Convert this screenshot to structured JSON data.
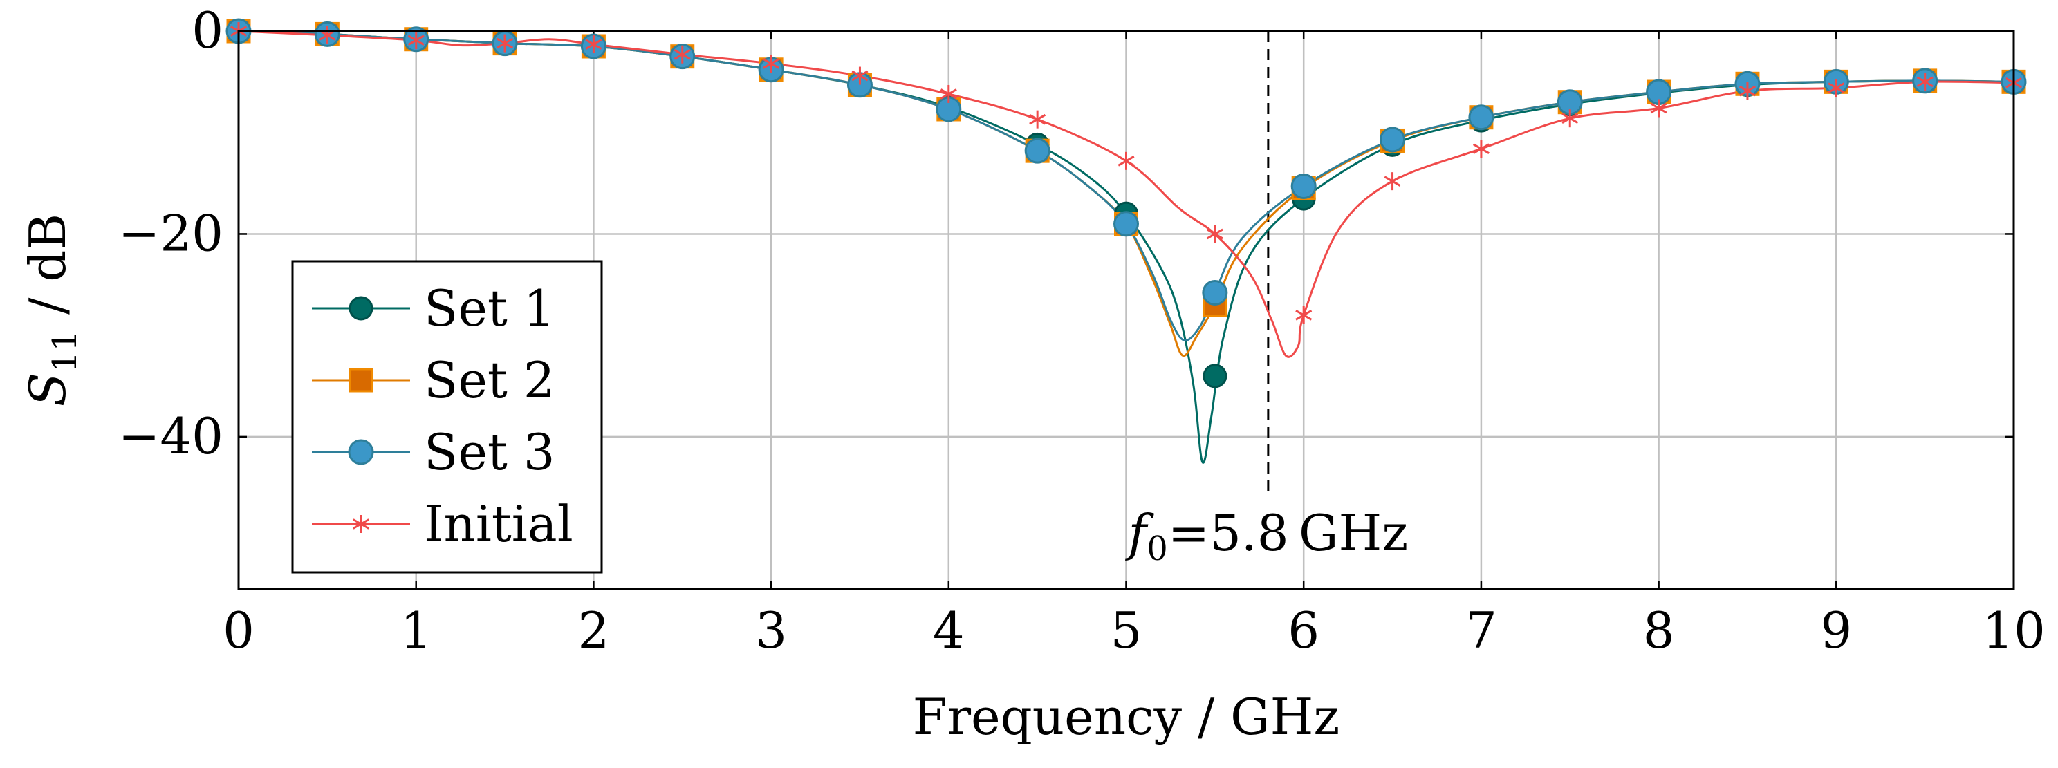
{
  "chart_data": {
    "type": "line",
    "title": "",
    "xlabel": "Frequency / GHz",
    "ylabel_main": "S",
    "ylabel_sub": "11",
    "ylabel_unit": " / dB",
    "xlim": [
      0,
      10
    ],
    "ylim": [
      -55,
      0
    ],
    "xticks": [
      0,
      1,
      2,
      3,
      4,
      5,
      6,
      7,
      8,
      9,
      10
    ],
    "xtick_labels": [
      "0",
      "1",
      "2",
      "3",
      "4",
      "5",
      "6",
      "7",
      "8",
      "9",
      "10"
    ],
    "yticks": [
      0,
      -20,
      -40
    ],
    "ytick_labels": [
      "0",
      "−20",
      "−40"
    ],
    "grid": true,
    "legend_position": "bottom-left",
    "annotation": {
      "x": 5.8,
      "style": "dashed vertical line",
      "label_italic": "f",
      "label_sub": "0",
      "label_rest": "=5.8 GHz"
    },
    "series": [
      {
        "name": "Set 1",
        "color": "#006b63",
        "marker": "circle",
        "markers": {
          "x": [
            0,
            0.5,
            1,
            1.5,
            2,
            2.5,
            3,
            3.5,
            4,
            4.5,
            5,
            5.5,
            6,
            6.5,
            7,
            7.5,
            8,
            8.5,
            9,
            9.5,
            10
          ],
          "y": [
            0,
            -0.3,
            -0.8,
            -1.2,
            -1.5,
            -2.5,
            -3.8,
            -5.3,
            -7.5,
            -11.2,
            -18,
            -34,
            -16.5,
            -11.2,
            -8.8,
            -7.2,
            -6.1,
            -5.3,
            -5.0,
            -4.9,
            -5.0
          ]
        },
        "curve": {
          "x": [
            0,
            0.5,
            1,
            1.5,
            2,
            2.5,
            3,
            3.5,
            4,
            4.5,
            4.8,
            5,
            5.2,
            5.3,
            5.38,
            5.43,
            5.48,
            5.55,
            5.7,
            6,
            6.5,
            7,
            7.5,
            8,
            8.5,
            9,
            9.5,
            10
          ],
          "y": [
            0,
            -0.3,
            -0.8,
            -1.2,
            -1.5,
            -2.5,
            -3.8,
            -5.3,
            -7.5,
            -11.2,
            -14.5,
            -18,
            -23.5,
            -28,
            -35,
            -42.5,
            -38,
            -30,
            -22,
            -16.5,
            -11.2,
            -8.8,
            -7.2,
            -6.1,
            -5.3,
            -5.0,
            -4.9,
            -5.0
          ]
        }
      },
      {
        "name": "Set 2",
        "color": "#e07b00",
        "marker": "square",
        "markers": {
          "x": [
            0,
            0.5,
            1,
            1.5,
            2,
            2.5,
            3,
            3.5,
            4,
            4.5,
            5,
            5.5,
            6,
            6.5,
            7,
            7.5,
            8,
            8.5,
            9,
            9.5,
            10
          ],
          "y": [
            0,
            -0.3,
            -0.8,
            -1.2,
            -1.5,
            -2.5,
            -3.8,
            -5.3,
            -7.7,
            -11.8,
            -19,
            -27,
            -15.5,
            -10.8,
            -8.5,
            -7.0,
            -6.0,
            -5.2,
            -5.0,
            -4.9,
            -5.0
          ]
        },
        "curve": {
          "x": [
            0,
            0.5,
            1,
            1.5,
            2,
            2.5,
            3,
            3.5,
            4,
            4.5,
            4.8,
            5,
            5.15,
            5.25,
            5.32,
            5.4,
            5.5,
            5.65,
            6,
            6.5,
            7,
            7.5,
            8,
            8.5,
            9,
            9.5,
            10
          ],
          "y": [
            0,
            -0.3,
            -0.8,
            -1.2,
            -1.5,
            -2.5,
            -3.8,
            -5.3,
            -7.7,
            -11.8,
            -15.5,
            -19,
            -24.5,
            -29,
            -32,
            -30,
            -27,
            -21.5,
            -15.5,
            -10.8,
            -8.5,
            -7.0,
            -6.0,
            -5.2,
            -5.0,
            -4.9,
            -5.0
          ]
        }
      },
      {
        "name": "Set 3",
        "color": "#2e7f9a",
        "marker": "circle-blue",
        "markers": {
          "x": [
            0,
            0.5,
            1,
            1.5,
            2,
            2.5,
            3,
            3.5,
            4,
            4.5,
            5,
            5.5,
            6,
            6.5,
            7,
            7.5,
            8,
            8.5,
            9,
            9.5,
            10
          ],
          "y": [
            0,
            -0.3,
            -0.8,
            -1.2,
            -1.5,
            -2.5,
            -3.8,
            -5.3,
            -7.7,
            -11.8,
            -19,
            -25.8,
            -15.3,
            -10.7,
            -8.5,
            -7.0,
            -6.0,
            -5.2,
            -5.0,
            -4.9,
            -5.0
          ]
        },
        "curve": {
          "x": [
            0,
            0.5,
            1,
            1.5,
            2,
            2.5,
            3,
            3.5,
            4,
            4.5,
            4.8,
            5,
            5.15,
            5.25,
            5.33,
            5.42,
            5.5,
            5.65,
            6,
            6.5,
            7,
            7.5,
            8,
            8.5,
            9,
            9.5,
            10
          ],
          "y": [
            0,
            -0.3,
            -0.8,
            -1.2,
            -1.5,
            -2.5,
            -3.8,
            -5.3,
            -7.7,
            -11.8,
            -15.5,
            -19,
            -24,
            -28.5,
            -30.5,
            -29,
            -25.8,
            -20.5,
            -15.3,
            -10.7,
            -8.5,
            -7.0,
            -6.0,
            -5.2,
            -5.0,
            -4.9,
            -5.0
          ]
        }
      },
      {
        "name": "Initial",
        "color": "#f04a4a",
        "marker": "star",
        "markers": {
          "x": [
            0,
            0.5,
            1,
            1.5,
            2,
            2.5,
            3,
            3.5,
            4,
            4.5,
            5,
            5.5,
            6,
            6.5,
            7,
            7.5,
            8,
            8.5,
            9,
            9.5,
            10
          ],
          "y": [
            0,
            -0.4,
            -0.9,
            -1.2,
            -1.3,
            -2.3,
            -3.2,
            -4.4,
            -6.2,
            -8.7,
            -12.8,
            -20,
            -28,
            -14.8,
            -11.6,
            -8.6,
            -7.6,
            -5.9,
            -5.6,
            -5.0,
            -5.1
          ]
        },
        "curve": {
          "x": [
            0,
            0.5,
            1,
            1.25,
            1.5,
            1.75,
            2,
            2.5,
            3,
            3.5,
            4,
            4.5,
            5,
            5.3,
            5.5,
            5.7,
            5.82,
            5.9,
            5.97,
            6,
            6.2,
            6.5,
            7,
            7.5,
            8,
            8.5,
            9,
            9.5,
            10
          ],
          "y": [
            0,
            -0.4,
            -0.9,
            -1.4,
            -1.2,
            -0.8,
            -1.3,
            -2.3,
            -3.2,
            -4.4,
            -6.2,
            -8.7,
            -12.8,
            -17.5,
            -20,
            -24,
            -28.5,
            -32,
            -31,
            -28,
            -19.5,
            -14.8,
            -11.6,
            -8.6,
            -7.6,
            -5.9,
            -5.6,
            -5.0,
            -5.1
          ]
        }
      }
    ]
  }
}
